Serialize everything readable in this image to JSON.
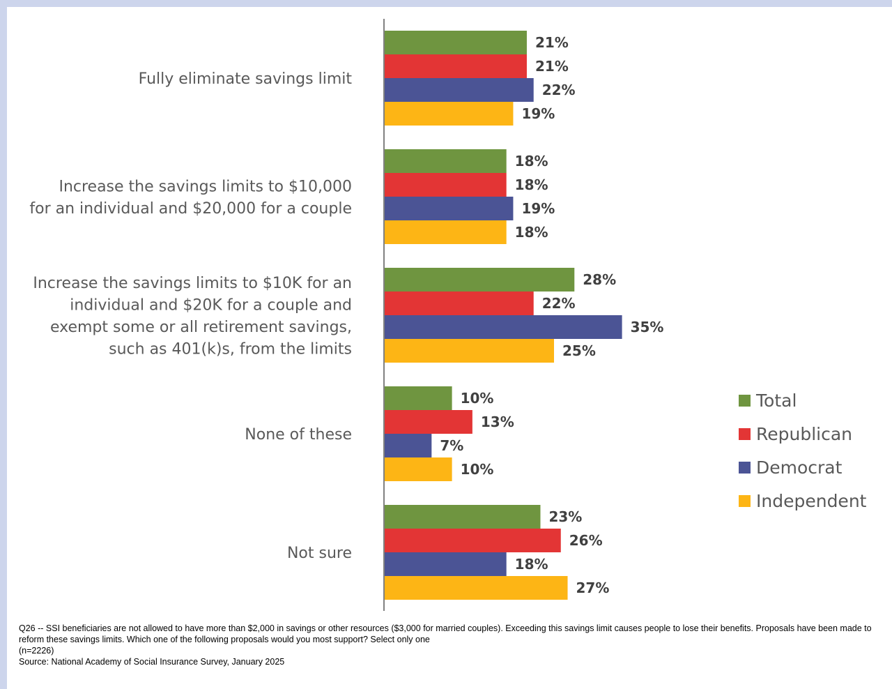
{
  "chart_data": {
    "type": "bar",
    "orientation": "horizontal",
    "categories": [
      [
        "Fully eliminate savings limit"
      ],
      [
        "Increase the savings limits to $10,000",
        "for an individual and $20,000 for a couple"
      ],
      [
        "Increase the savings limits to $10K for an",
        "individual and $20K for a couple and",
        "exempt some or all retirement savings,",
        "such as 401(k)s, from the limits"
      ],
      [
        "None of these"
      ],
      [
        "Not sure"
      ]
    ],
    "series": [
      {
        "name": "Total",
        "color": "#6f9540",
        "values": [
          21,
          18,
          28,
          10,
          23
        ]
      },
      {
        "name": "Republican",
        "color": "#e33535",
        "values": [
          21,
          18,
          22,
          13,
          26
        ]
      },
      {
        "name": "Democrat",
        "color": "#4b5495",
        "values": [
          22,
          19,
          35,
          7,
          18
        ]
      },
      {
        "name": "Independent",
        "color": "#fdb515",
        "values": [
          19,
          18,
          25,
          10,
          27
        ]
      }
    ],
    "value_suffix": "%",
    "xlim": [
      0,
      40
    ],
    "grid": false,
    "legend_position": "right"
  },
  "footnote": {
    "question": "Q26 -- SSI beneficiaries are not allowed to have more than $2,000 in savings or other resources ($3,000 for married couples). Exceeding this savings limit causes people to lose their benefits. Proposals have been made to reform these savings limits. Which one of the following proposals would you most support? Select only one",
    "sample": "(n=2226)",
    "source": "Source: National Academy of Social Insurance Survey, January 2025"
  }
}
